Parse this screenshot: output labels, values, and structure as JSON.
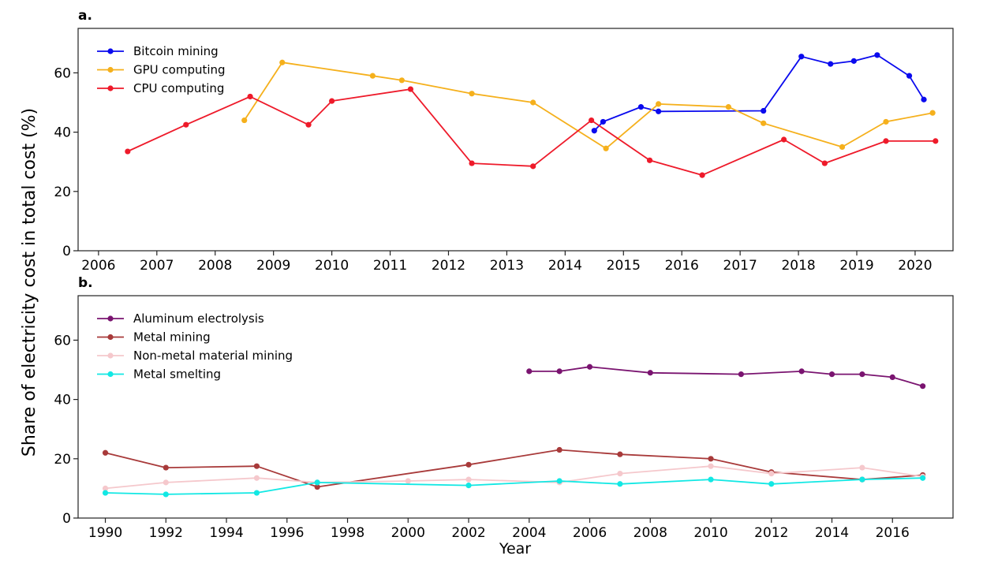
{
  "figure": {
    "ylabel": "Share of electricity cost in total cost (%)",
    "xlabel": "Year"
  },
  "chart_data": [
    {
      "type": "line",
      "panel_label": "a.",
      "xlim": [
        2005.65,
        2020.65
      ],
      "ylim": [
        0,
        75
      ],
      "xticks": [
        2006,
        2007,
        2008,
        2009,
        2010,
        2011,
        2012,
        2013,
        2014,
        2015,
        2016,
        2017,
        2018,
        2019,
        2020
      ],
      "yticks": [
        0,
        20,
        40,
        60
      ],
      "legend_position": "top-left",
      "series": [
        {
          "name": "Bitcoin mining",
          "color": "#0a0aee",
          "x": [
            2014.5,
            2014.65,
            2015.3,
            2015.6,
            2017.4,
            2018.05,
            2018.55,
            2018.95,
            2019.35,
            2019.9,
            2020.15
          ],
          "y": [
            40.5,
            43.5,
            48.5,
            47.0,
            47.2,
            65.5,
            63.0,
            64.0,
            66.0,
            59.0,
            51.0
          ]
        },
        {
          "name": "GPU computing",
          "color": "#f5b01c",
          "x": [
            2008.5,
            2009.15,
            2010.7,
            2011.2,
            2012.4,
            2013.45,
            2014.7,
            2015.6,
            2016.8,
            2017.4,
            2018.75,
            2019.5,
            2020.3
          ],
          "y": [
            44.0,
            63.5,
            59.0,
            57.5,
            53.0,
            50.0,
            34.5,
            49.5,
            48.5,
            43.0,
            35.0,
            43.5,
            46.5
          ]
        },
        {
          "name": "CPU computing",
          "color": "#ee1a2a",
          "x": [
            2006.5,
            2007.5,
            2008.6,
            2009.6,
            2010.0,
            2011.35,
            2012.4,
            2013.45,
            2014.45,
            2015.45,
            2016.35,
            2017.75,
            2018.45,
            2019.5,
            2020.35
          ],
          "y": [
            33.5,
            42.5,
            52.0,
            42.5,
            50.5,
            54.5,
            29.5,
            28.5,
            44.0,
            30.5,
            25.5,
            37.5,
            29.5,
            37.0,
            37.0
          ]
        }
      ]
    },
    {
      "type": "line",
      "panel_label": "b.",
      "xlim": [
        1989.1,
        2018.0
      ],
      "ylim": [
        0,
        75
      ],
      "xticks": [
        1990,
        1992,
        1994,
        1996,
        1998,
        2000,
        2002,
        2004,
        2006,
        2008,
        2010,
        2012,
        2014,
        2016
      ],
      "yticks": [
        0,
        20,
        40,
        60
      ],
      "legend_position": "top-left",
      "series": [
        {
          "name": "Aluminum electrolysis",
          "color": "#7a1470",
          "x": [
            2004,
            2005,
            2006,
            2008,
            2011,
            2013,
            2014,
            2015,
            2016,
            2017
          ],
          "y": [
            49.5,
            49.5,
            51.0,
            49.0,
            48.5,
            49.5,
            48.5,
            48.5,
            47.5,
            44.5
          ]
        },
        {
          "name": "Metal mining",
          "color": "#a83a3a",
          "x": [
            1990,
            1992,
            1995,
            1997,
            2002,
            2005,
            2007,
            2010,
            2012,
            2015,
            2017
          ],
          "y": [
            22.0,
            17.0,
            17.5,
            10.5,
            18.0,
            23.0,
            21.5,
            20.0,
            15.5,
            13.0,
            14.5
          ]
        },
        {
          "name": "Non-metal material mining",
          "color": "#f5c8cc",
          "x": [
            1990,
            1992,
            1995,
            1997,
            2000,
            2002,
            2005,
            2007,
            2010,
            2012,
            2015,
            2017
          ],
          "y": [
            10.0,
            12.0,
            13.5,
            12.0,
            12.5,
            13.0,
            12.0,
            15.0,
            17.5,
            15.0,
            17.0,
            14.0
          ]
        },
        {
          "name": "Metal smelting",
          "color": "#12e8e4",
          "x": [
            1990,
            1992,
            1995,
            1997,
            2002,
            2005,
            2007,
            2010,
            2012,
            2015,
            2017
          ],
          "y": [
            8.5,
            8.0,
            8.5,
            12.0,
            11.0,
            12.5,
            11.5,
            13.0,
            11.5,
            13.0,
            13.5
          ]
        }
      ]
    }
  ]
}
